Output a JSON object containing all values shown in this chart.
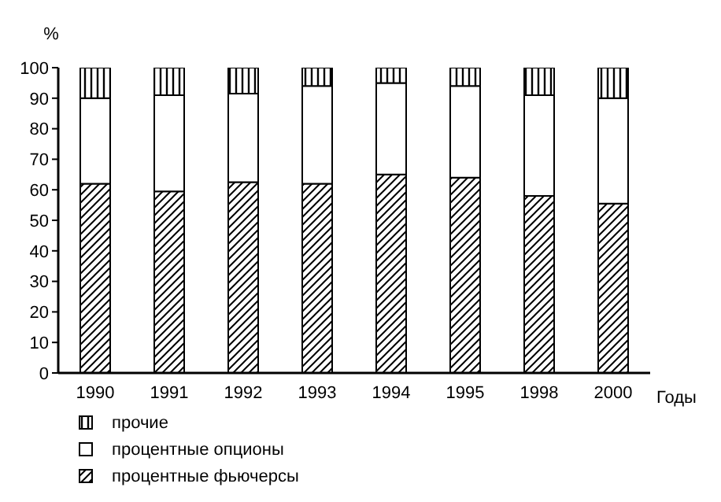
{
  "chart_data": {
    "type": "bar",
    "stacked": true,
    "ylabel": "%",
    "xlabel": "Годы",
    "categories": [
      "1990",
      "1991",
      "1992",
      "1993",
      "1994",
      "1995",
      "1998",
      "2000"
    ],
    "series": [
      {
        "name": "процентные фьючерсы",
        "color": "#000000",
        "values": [
          62,
          59.5,
          62.5,
          62,
          65,
          64,
          58,
          55.5
        ]
      },
      {
        "name": "процентные опционы",
        "color": "#ffffff",
        "values": [
          28,
          31.5,
          29,
          32,
          30,
          30,
          33,
          34.5
        ]
      },
      {
        "name": "прочие",
        "color": "#000000",
        "values": [
          10,
          9,
          8.5,
          6,
          5,
          6,
          9,
          10
        ]
      }
    ],
    "ylim": [
      0,
      100
    ],
    "yticks": [
      0,
      10,
      20,
      30,
      40,
      50,
      60,
      70,
      80,
      90,
      100
    ],
    "grid": false,
    "legend": "bottom left"
  }
}
